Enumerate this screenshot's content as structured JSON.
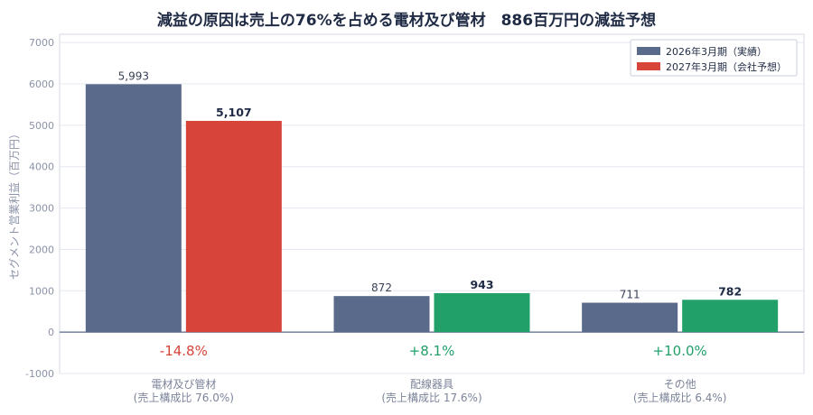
{
  "chart_data": {
    "type": "bar",
    "title": "減益の原因は売上の76%を占める電材及び管材　886百万円の減益予想",
    "ylabel": "セグメント営業利益（百万円）",
    "ylim": [
      -1000,
      7200
    ],
    "yticks": [
      -1000,
      0,
      1000,
      2000,
      3000,
      4000,
      5000,
      6000,
      7000
    ],
    "grid": true,
    "legend_position": "top-right",
    "categories": [
      {
        "name": "電材及び管材",
        "share": "(売上構成比 76.0%)",
        "change": "-14.8%",
        "change_color": "#d7443a",
        "forecast_color": "#d7443a"
      },
      {
        "name": "配線器具",
        "share": "(売上構成比 17.6%)",
        "change": "+8.1%",
        "change_color": "#21a06a",
        "forecast_color": "#21a06a"
      },
      {
        "name": "その他",
        "share": "(売上構成比 6.4%)",
        "change": "+10.0%",
        "change_color": "#21a06a",
        "forecast_color": "#21a06a"
      }
    ],
    "series": [
      {
        "name": "2026年3月期（実績）",
        "color": "#5a6a8a",
        "values": [
          5993,
          872,
          711
        ],
        "labels": [
          "5,993",
          "872",
          "711"
        ]
      },
      {
        "name": "2027年3月期（会社予想）",
        "color": "#d7443a",
        "values": [
          5107,
          943,
          782
        ],
        "labels": [
          "5,107",
          "943",
          "782"
        ]
      }
    ]
  }
}
